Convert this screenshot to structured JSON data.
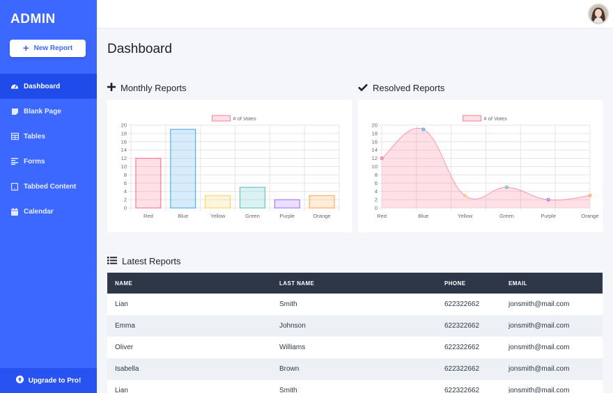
{
  "sidebar": {
    "brand": "ADMIN",
    "new_report_label": "New Report",
    "items": [
      {
        "label": "Dashboard",
        "icon": "gauge-icon",
        "active": true
      },
      {
        "label": "Blank Page",
        "icon": "sticky-note-icon"
      },
      {
        "label": "Tables",
        "icon": "table-icon"
      },
      {
        "label": "Forms",
        "icon": "align-left-icon"
      },
      {
        "label": "Tabbed Content",
        "icon": "tablet-icon"
      },
      {
        "label": "Calendar",
        "icon": "calendar-icon"
      }
    ],
    "upgrade_label": "Upgrade to Pro!"
  },
  "header": {
    "title": "Dashboard"
  },
  "sections": {
    "monthly": "Monthly Reports",
    "resolved": "Resolved Reports",
    "latest": "Latest Reports"
  },
  "chart_data": [
    {
      "type": "bar",
      "legend": "# of Votes",
      "categories": [
        "Red",
        "Blue",
        "Yellow",
        "Green",
        "Purple",
        "Orange"
      ],
      "values": [
        12,
        19,
        3,
        5,
        2,
        3
      ],
      "ylim": [
        0,
        20
      ],
      "yticks": [
        0,
        2,
        4,
        6,
        8,
        10,
        12,
        14,
        16,
        18,
        20
      ],
      "grid": true,
      "legend_position": "top",
      "colors": [
        "#ff6384",
        "#36a2eb",
        "#ffce56",
        "#4bc0c0",
        "#9966ff",
        "#ff9f40"
      ]
    },
    {
      "type": "area",
      "legend": "# of Votes",
      "categories": [
        "Red",
        "Blue",
        "Yellow",
        "Green",
        "Purple",
        "Orange"
      ],
      "values": [
        12,
        19,
        3,
        5,
        2,
        3
      ],
      "ylim": [
        0,
        20
      ],
      "yticks": [
        0,
        2,
        4,
        6,
        8,
        10,
        12,
        14,
        16,
        18,
        20
      ],
      "grid": true,
      "legend_position": "top",
      "colors": [
        "#ff6384",
        "#36a2eb",
        "#ffce56",
        "#4bc0c0",
        "#9966ff",
        "#ff9f40"
      ]
    }
  ],
  "table": {
    "headers": [
      "NAME",
      "LAST NAME",
      "PHONE",
      "EMAIL"
    ],
    "rows": [
      [
        "Lian",
        "Smith",
        "622322662",
        "jonsmith@mail.com"
      ],
      [
        "Emma",
        "Johnson",
        "622322662",
        "jonsmith@mail.com"
      ],
      [
        "Oliver",
        "Williams",
        "622322662",
        "jonsmith@mail.com"
      ],
      [
        "Isabella",
        "Brown",
        "622322662",
        "jonsmith@mail.com"
      ],
      [
        "Lian",
        "Smith",
        "622322662",
        "jonsmith@mail.com"
      ]
    ]
  },
  "colors": {
    "accent": "#3d68ff",
    "accent_dark": "#1f4bea",
    "table_header": "#2d3748"
  }
}
